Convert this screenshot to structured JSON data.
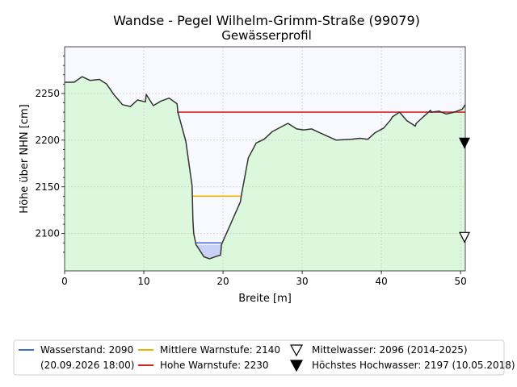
{
  "chart_data": {
    "type": "area",
    "title": "Wandse - Pegel Wilhelm-Grimm-Straße (99079)",
    "subtitle": "Gewässerprofil",
    "xlabel": "Breite [m]",
    "ylabel": "Höhe über NHN [cm]",
    "xlim": [
      0,
      50.6
    ],
    "ylim": [
      2060,
      2300
    ],
    "xticks": [
      0,
      10,
      20,
      30,
      40,
      50
    ],
    "yticks": [
      2100,
      2150,
      2200,
      2250
    ],
    "grid": true,
    "profile": {
      "x": [
        0,
        1.2,
        2.2,
        3.2,
        4.4,
        5.3,
        6.2,
        7.3,
        8.3,
        9.2,
        10.2,
        10.3,
        11.2,
        12.2,
        13.2,
        14.2,
        14.3,
        15.2,
        15.3,
        16.1,
        16.2,
        16.3,
        16.6,
        17.0,
        17.6,
        18.3,
        19.0,
        19.7,
        19.8,
        22.2,
        22.3,
        23.2,
        24.2,
        25.2,
        26.2,
        27.3,
        28.2,
        29.3,
        30.2,
        31.2,
        32.2,
        34.3,
        36.2,
        37.3,
        38.3,
        39.2,
        40.3,
        41.2,
        41.4,
        42.3,
        43.2,
        44.3,
        44.4,
        46.2,
        46.3,
        47.3,
        48.2,
        49.2,
        50.2,
        50.6
      ],
      "y": [
        2262,
        2262,
        2268,
        2264,
        2265,
        2260,
        2249,
        2238,
        2236,
        2243,
        2241,
        2249,
        2237,
        2242,
        2245,
        2239,
        2230,
        2202,
        2199,
        2151,
        2115,
        2100,
        2088,
        2083,
        2075,
        2073,
        2075,
        2077,
        2088,
        2134,
        2140,
        2181,
        2197,
        2201,
        2209,
        2214,
        2218,
        2212,
        2211,
        2212,
        2208,
        2200,
        2201,
        2202,
        2201,
        2208,
        2213,
        2222,
        2225,
        2230,
        2221,
        2215,
        2218,
        2232,
        2230,
        2231,
        2228,
        2230,
        2233,
        2238
      ]
    },
    "levels": [
      {
        "name": "Wasserstand: 2090",
        "name2": "(20.09.2026 18:00)",
        "value": 2090,
        "x": [
          16.6,
          19.8
        ],
        "color": "#4169e1",
        "fill": "#c8d2f5"
      },
      {
        "name": "Mittlere Warnstufe: 2140",
        "value": 2140,
        "x": [
          16.2,
          22.2
        ],
        "color": "#f0b400"
      },
      {
        "name": "Hohe Warnstufe: 2230",
        "value": 2230,
        "x": [
          14.2,
          50.6
        ],
        "color": "#d62728"
      }
    ],
    "markers": [
      {
        "name": "Mittelwasser: 2096 (2014-2025)",
        "value": 2096,
        "x": 50.5,
        "style": "open-triangle-down"
      },
      {
        "name": "Höchstes Hochwasser: 2197 (10.05.2018)",
        "value": 2197,
        "x": 50.5,
        "style": "filled-triangle-down"
      }
    ],
    "colors": {
      "ground_fill": "#dbf7dc",
      "air_fill": "#f8f8ff",
      "profile_line": "#333333"
    }
  }
}
